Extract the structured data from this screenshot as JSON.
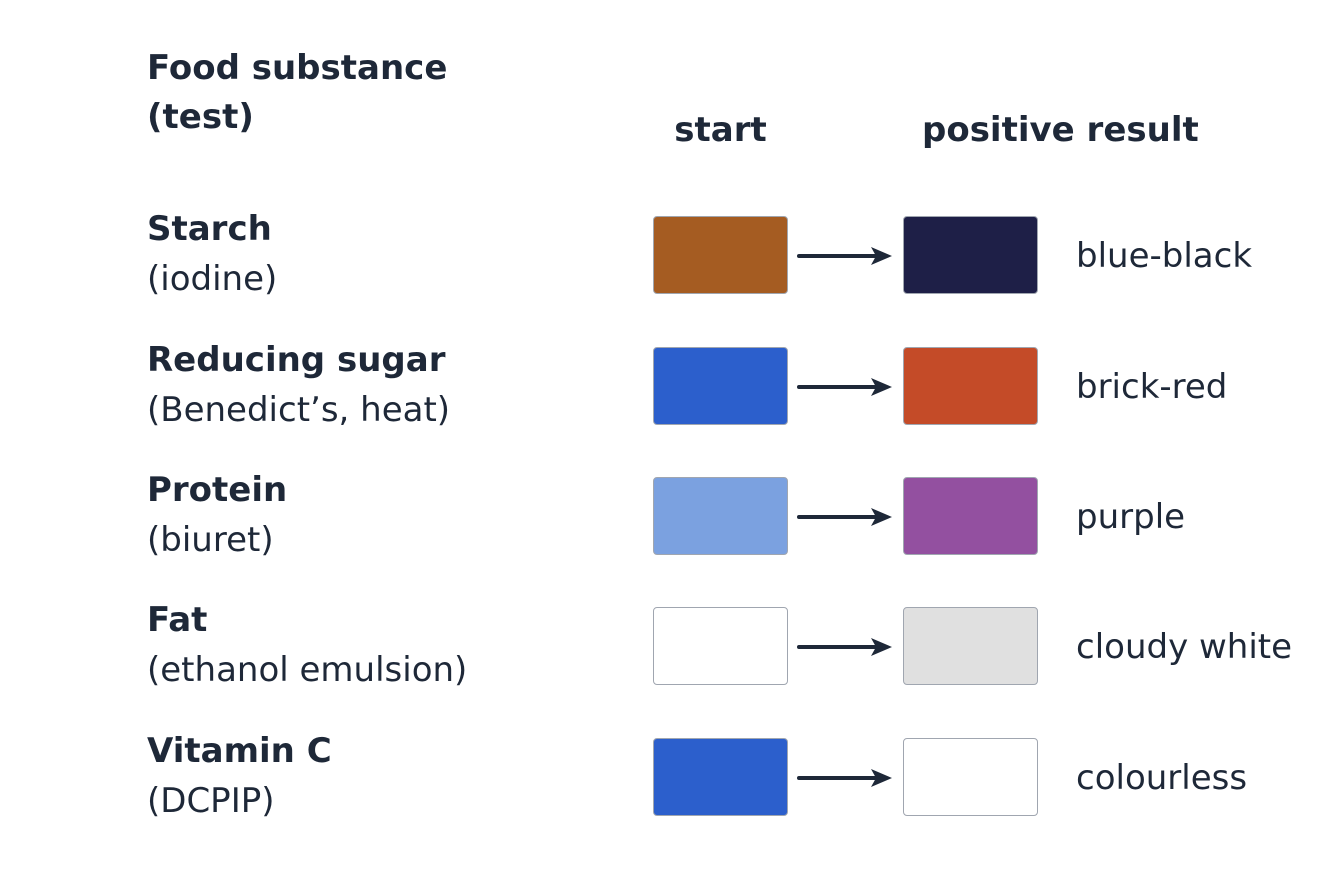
{
  "headers": {
    "food_line1": "Food substance",
    "food_line2": "(test)",
    "start": "start",
    "result": "positive result"
  },
  "rows": [
    {
      "name": "Starch",
      "test": "(iodine)",
      "start_color": "#a55c22",
      "end_color": "#1e1f47",
      "result": "blue-black"
    },
    {
      "name": "Reducing sugar",
      "test": "(Benedict’s, heat)",
      "start_color": "#2c5fcc",
      "end_color": "#c44b28",
      "result": "brick-red"
    },
    {
      "name": "Protein",
      "test": "(biuret)",
      "start_color": "#7ba1e0",
      "end_color": "#9350a0",
      "result": "purple"
    },
    {
      "name": "Fat",
      "test": "(ethanol emulsion)",
      "start_color": "#ffffff",
      "end_color": "#e0e0e0",
      "result": "cloudy white"
    },
    {
      "name": "Vitamin C",
      "test": "(DCPIP)",
      "start_color": "#2c5fcc",
      "end_color": "#ffffff",
      "result": "colourless"
    }
  ],
  "colors": {
    "text": "#1e2838",
    "swatch_border": "#a0a6b0"
  }
}
